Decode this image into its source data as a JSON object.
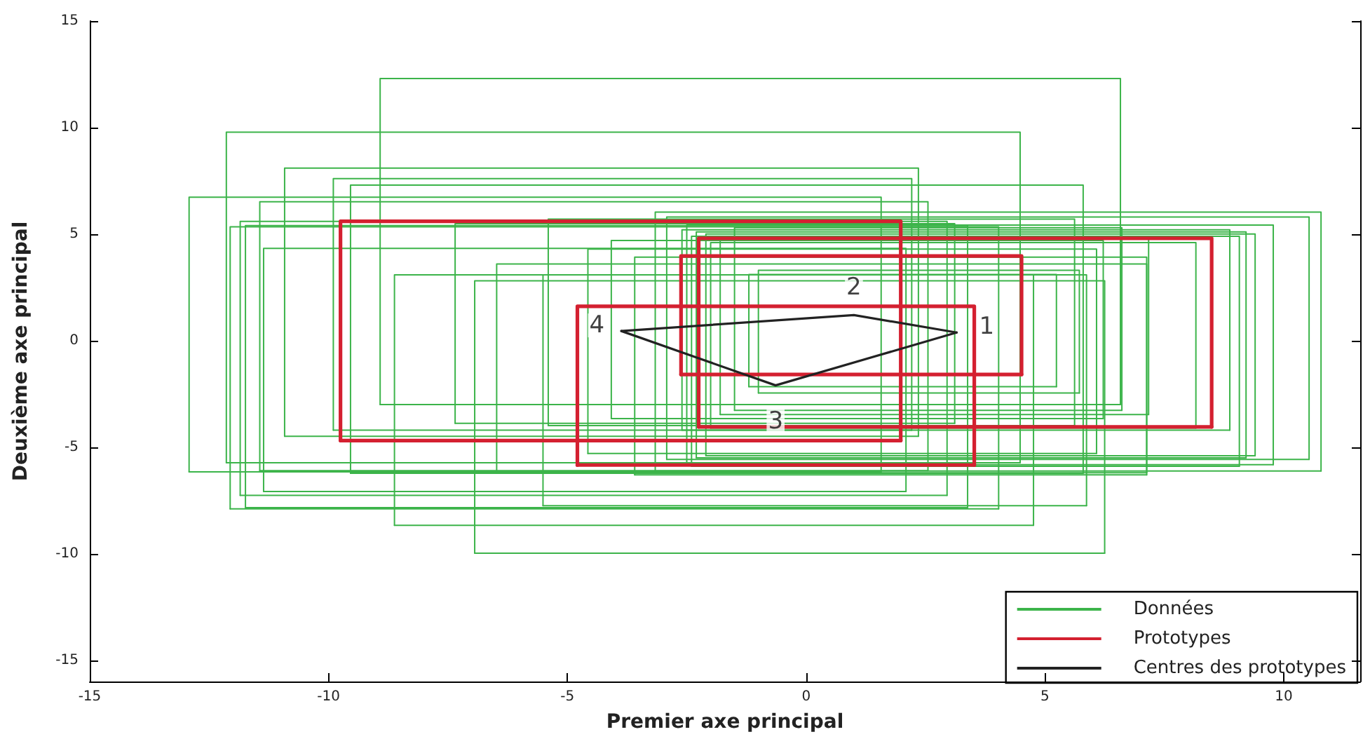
{
  "chart_data": {
    "type": "line",
    "xlabel": "Premier axe principal",
    "ylabel": "Deuxième axe principal",
    "xlim": [
      -15,
      11.6
    ],
    "ylim": [
      -16,
      15
    ],
    "xticks": [
      -15,
      -10,
      -5,
      0,
      5,
      10
    ],
    "yticks": [
      -15,
      -10,
      -5,
      0,
      5,
      10,
      15
    ],
    "marker": "none",
    "legend": "bottom right",
    "series": [
      {
        "name": "Données",
        "color": "#3cb44a",
        "x": [
          -8.92,
          -8.92,
          6.58,
          6.58
        ],
        "values": [
          -3.0,
          12.3,
          12.3,
          -3.0
        ]
      },
      {
        "color": "#3cb44a",
        "x": [
          -8.92,
          6.58
        ],
        "values": [
          -3.0,
          -3.0
        ]
      },
      {
        "color": "#3cb44a",
        "x": [
          -12.14,
          -12.14,
          4.48,
          4.48
        ],
        "values": [
          -5.73,
          9.78,
          9.78,
          -5.73
        ]
      },
      {
        "color": "#3cb44a",
        "x": [
          -12.14,
          4.48
        ],
        "values": [
          -5.73,
          -5.73
        ]
      },
      {
        "color": "#3cb44a",
        "x": [
          -10.92,
          -10.92,
          2.35,
          2.35
        ],
        "values": [
          -4.49,
          8.1,
          8.1,
          -4.49
        ]
      },
      {
        "color": "#3cb44a",
        "x": [
          -10.92,
          2.35
        ],
        "values": [
          -4.49,
          -4.49
        ]
      },
      {
        "color": "#3cb44a",
        "x": [
          -9.9,
          -9.9,
          2.21,
          2.21
        ],
        "values": [
          -4.2,
          7.6,
          7.6,
          -4.2
        ]
      },
      {
        "color": "#3cb44a",
        "x": [
          -9.9,
          2.21
        ],
        "values": [
          -4.2,
          -4.2
        ]
      },
      {
        "color": "#3cb44a",
        "x": [
          -9.54,
          -9.54,
          5.8,
          5.8
        ],
        "values": [
          -6.23,
          7.3,
          7.3,
          -6.23
        ]
      },
      {
        "color": "#3cb44a",
        "x": [
          -9.54,
          5.8
        ],
        "values": [
          -6.23,
          -6.23
        ]
      },
      {
        "color": "#3cb44a",
        "x": [
          -12.92,
          -12.92,
          1.57,
          1.57
        ],
        "values": [
          -6.16,
          6.73,
          6.73,
          -6.16
        ]
      },
      {
        "color": "#3cb44a",
        "x": [
          -12.92,
          1.57
        ],
        "values": [
          -6.16,
          -6.16
        ]
      },
      {
        "color": "#3cb44a",
        "x": [
          -11.44,
          -11.44,
          2.55,
          2.55
        ],
        "values": [
          -6.1,
          6.52,
          6.52,
          -6.1
        ]
      },
      {
        "color": "#3cb44a",
        "x": [
          -11.44,
          2.55
        ],
        "values": [
          -6.1,
          -6.1
        ]
      },
      {
        "color": "#3cb44a",
        "x": [
          -6.94,
          -6.94,
          6.25,
          6.25
        ],
        "values": [
          -9.98,
          2.81,
          2.81,
          -9.98
        ]
      },
      {
        "color": "#3cb44a",
        "x": [
          -6.94,
          6.25
        ],
        "values": [
          -9.98,
          -9.98
        ]
      },
      {
        "color": "#3cb44a",
        "x": [
          -8.62,
          -8.62,
          4.76,
          4.76
        ],
        "values": [
          -8.67,
          3.09,
          3.09,
          -8.67
        ]
      },
      {
        "color": "#3cb44a",
        "x": [
          -8.62,
          4.76
        ],
        "values": [
          -8.67,
          -8.67
        ]
      },
      {
        "color": "#3cb44a",
        "x": [
          -12.06,
          -12.06,
          4.03,
          4.03
        ],
        "values": [
          -7.9,
          5.34,
          5.34,
          -7.9
        ]
      },
      {
        "color": "#3cb44a",
        "x": [
          -12.06,
          4.03
        ],
        "values": [
          -7.9,
          -7.9
        ]
      },
      {
        "color": "#3cb44a",
        "x": [
          -11.36,
          -11.36,
          2.09,
          2.09
        ],
        "values": [
          -7.08,
          4.33,
          4.33,
          -7.08
        ]
      },
      {
        "color": "#3cb44a",
        "x": [
          -11.36,
          2.09
        ],
        "values": [
          -7.08,
          -7.08
        ]
      },
      {
        "color": "#3cb44a",
        "x": [
          -11.85,
          -11.85,
          2.95,
          2.95
        ],
        "values": [
          -7.26,
          5.6,
          5.6,
          -7.26
        ]
      },
      {
        "color": "#3cb44a",
        "x": [
          -11.85,
          2.95
        ],
        "values": [
          -7.26,
          -7.26
        ]
      },
      {
        "color": "#3cb44a",
        "x": [
          -11.74,
          -11.74,
          3.38,
          3.38
        ],
        "values": [
          -7.84,
          5.4,
          5.4,
          -7.84
        ]
      },
      {
        "color": "#3cb44a",
        "x": [
          -11.74,
          3.38
        ],
        "values": [
          -7.84,
          -7.84
        ]
      },
      {
        "color": "#3cb44a",
        "x": [
          -6.48,
          -6.48,
          7.13,
          7.13
        ],
        "values": [
          -6.2,
          3.6,
          3.6,
          -6.2
        ]
      },
      {
        "color": "#3cb44a",
        "x": [
          -6.48,
          7.13
        ],
        "values": [
          -6.2,
          -6.2
        ]
      },
      {
        "color": "#3cb44a",
        "x": [
          -3.16,
          -3.16,
          10.78,
          10.78
        ],
        "values": [
          -6.12,
          6.03,
          6.03,
          -6.12
        ]
      },
      {
        "color": "#3cb44a",
        "x": [
          -3.16,
          10.78
        ],
        "values": [
          -6.12,
          -6.12
        ]
      },
      {
        "color": "#3cb44a",
        "x": [
          -2.92,
          -2.92,
          10.53,
          10.53
        ],
        "values": [
          -5.58,
          5.8,
          5.8,
          -5.58
        ]
      },
      {
        "color": "#3cb44a",
        "x": [
          -2.92,
          10.53
        ],
        "values": [
          -5.58,
          -5.58
        ]
      },
      {
        "color": "#3cb44a",
        "x": [
          -2.5,
          -2.5,
          9.78,
          9.78
        ],
        "values": [
          -5.82,
          5.42,
          5.42,
          -5.82
        ]
      },
      {
        "color": "#3cb44a",
        "x": [
          -2.5,
          9.78
        ],
        "values": [
          -5.82,
          -5.82
        ]
      },
      {
        "color": "#3cb44a",
        "x": [
          -7.35,
          -7.35,
          3.11,
          3.11
        ],
        "values": [
          -3.88,
          5.49,
          5.49,
          -3.88
        ]
      },
      {
        "color": "#3cb44a",
        "x": [
          -7.35,
          3.11
        ],
        "values": [
          -3.88,
          -3.88
        ]
      },
      {
        "color": "#3cb44a",
        "x": [
          -5.4,
          -5.4,
          5.62,
          5.62
        ],
        "values": [
          -3.99,
          5.7,
          5.7,
          -3.99
        ]
      },
      {
        "color": "#3cb44a",
        "x": [
          -5.4,
          5.62
        ],
        "values": [
          -3.99,
          -3.99
        ]
      },
      {
        "color": "#3cb44a",
        "x": [
          -4.57,
          -4.57,
          6.08,
          6.08
        ],
        "values": [
          -5.3,
          4.3,
          4.3,
          -5.3
        ]
      },
      {
        "color": "#3cb44a",
        "x": [
          -4.57,
          6.08
        ],
        "values": [
          -5.3,
          -5.3
        ]
      },
      {
        "color": "#3cb44a",
        "x": [
          -4.08,
          -4.08,
          6.22,
          6.22
        ],
        "values": [
          -3.66,
          4.7,
          4.7,
          -3.66
        ]
      },
      {
        "color": "#3cb44a",
        "x": [
          -4.08,
          6.22
        ],
        "values": [
          -3.66,
          -3.66
        ]
      },
      {
        "color": "#3cb44a",
        "x": [
          -3.59,
          -3.59,
          7.13,
          7.13
        ],
        "values": [
          -6.3,
          3.92,
          3.92,
          -6.3
        ]
      },
      {
        "color": "#3cb44a",
        "x": [
          -3.59,
          7.13
        ],
        "values": [
          -6.3,
          -6.3
        ]
      },
      {
        "color": "#3cb44a",
        "x": [
          -2.6,
          -2.6,
          8.87,
          8.87
        ],
        "values": [
          -4.2,
          5.2,
          5.2,
          -4.2
        ]
      },
      {
        "color": "#3cb44a",
        "x": [
          -2.6,
          8.87
        ],
        "values": [
          -4.2,
          -4.2
        ]
      },
      {
        "color": "#3cb44a",
        "x": [
          -2.3,
          -2.3,
          9.21,
          9.21
        ],
        "values": [
          -5.5,
          5.1,
          5.1,
          -5.5
        ]
      },
      {
        "color": "#3cb44a",
        "x": [
          -2.3,
          9.21
        ],
        "values": [
          -5.5,
          -5.5
        ]
      },
      {
        "color": "#3cb44a",
        "x": [
          -2.1,
          -2.1,
          9.4,
          9.4
        ],
        "values": [
          -5.4,
          5.0,
          5.0,
          -5.4
        ]
      },
      {
        "color": "#3cb44a",
        "x": [
          -2.1,
          9.4
        ],
        "values": [
          -5.4,
          -5.4
        ]
      },
      {
        "color": "#3cb44a",
        "x": [
          -2.0,
          -2.0,
          8.16,
          8.16
        ],
        "values": [
          -4.1,
          4.6,
          4.6,
          -4.1
        ]
      },
      {
        "color": "#3cb44a",
        "x": [
          -2.0,
          8.16
        ],
        "values": [
          -4.1,
          -4.1
        ]
      },
      {
        "color": "#3cb44a",
        "x": [
          -1.2,
          -1.2,
          5.24,
          5.24
        ],
        "values": [
          -2.16,
          3.1,
          3.1,
          -2.16
        ]
      },
      {
        "color": "#3cb44a",
        "x": [
          -1.2,
          5.24
        ],
        "values": [
          -2.16,
          -2.16
        ]
      },
      {
        "color": "#3cb44a",
        "x": [
          -1.0,
          -1.0,
          5.72,
          5.72
        ],
        "values": [
          -2.46,
          3.3,
          3.3,
          -2.46
        ]
      },
      {
        "color": "#3cb44a",
        "x": [
          -1.0,
          5.72
        ],
        "values": [
          -2.46,
          -2.46
        ]
      },
      {
        "color": "#3cb44a",
        "x": [
          -1.8,
          -1.8,
          7.17,
          7.17
        ],
        "values": [
          -3.47,
          4.9,
          4.9,
          -3.47
        ]
      },
      {
        "color": "#3cb44a",
        "x": [
          -1.8,
          7.17
        ],
        "values": [
          -3.47,
          -3.47
        ]
      },
      {
        "color": "#3cb44a",
        "x": [
          -2.4,
          -2.4,
          9.07,
          9.07
        ],
        "values": [
          -5.9,
          4.9,
          4.9,
          -5.9
        ]
      },
      {
        "color": "#3cb44a",
        "x": [
          -2.4,
          9.07
        ],
        "values": [
          -5.9,
          -5.9
        ]
      },
      {
        "color": "#3cb44a",
        "x": [
          -1.5,
          -1.5,
          6.61,
          6.61
        ],
        "values": [
          -3.27,
          5.3,
          5.3,
          -3.27
        ]
      },
      {
        "color": "#3cb44a",
        "x": [
          -1.5,
          6.61
        ],
        "values": [
          -3.27,
          -3.27
        ]
      },
      {
        "color": "#3cb44a",
        "x": [
          -5.51,
          -5.51,
          5.87,
          5.87
        ],
        "values": [
          -7.75,
          3.09,
          3.09,
          -7.75
        ]
      },
      {
        "color": "#3cb44a",
        "x": [
          -5.51,
          5.87
        ],
        "values": [
          -7.75,
          -7.75
        ]
      },
      {
        "name": "Prototypes",
        "color": "#d42030",
        "x": [
          -9.75,
          -9.75,
          1.98,
          1.98
        ],
        "values": [
          -4.69,
          5.6,
          5.6,
          -4.69
        ]
      },
      {
        "color": "#d42030",
        "x": [
          -9.75,
          1.98
        ],
        "values": [
          -4.69,
          -4.69
        ]
      },
      {
        "color": "#d42030",
        "x": [
          -2.25,
          -2.25,
          8.49,
          8.49
        ],
        "values": [
          -4.05,
          4.8,
          4.8,
          -4.05
        ]
      },
      {
        "color": "#d42030",
        "x": [
          -2.25,
          8.49
        ],
        "values": [
          -4.05,
          -4.05
        ]
      },
      {
        "color": "#d42030",
        "x": [
          -2.62,
          -2.62,
          4.51,
          4.51
        ],
        "values": [
          -1.59,
          3.97,
          3.97,
          -1.59
        ]
      },
      {
        "color": "#d42030",
        "x": [
          -2.62,
          4.51
        ],
        "values": [
          -1.59,
          -1.59
        ]
      },
      {
        "color": "#d42030",
        "x": [
          -4.79,
          -4.79,
          3.52,
          3.52
        ],
        "values": [
          -5.84,
          1.61,
          1.61,
          -5.84
        ]
      },
      {
        "color": "#d42030",
        "x": [
          -4.79,
          3.52
        ],
        "values": [
          -5.84,
          -5.84
        ]
      },
      {
        "name": "Centres des prototypes",
        "color": "#222222",
        "x": [
          -3.87,
          1.0,
          3.15
        ],
        "values": [
          0.45,
          1.2,
          0.38
        ]
      },
      {
        "color": "#222222",
        "x": [
          -3.87,
          -0.64,
          3.15
        ],
        "values": [
          0.45,
          -2.1,
          0.38
        ]
      }
    ],
    "annotations": [
      {
        "text": "1",
        "x": 3.15,
        "y": 0.38
      },
      {
        "text": "2",
        "x": 1.0,
        "y": 1.2
      },
      {
        "text": "3",
        "x": -0.64,
        "y": -2.1
      },
      {
        "text": "4",
        "x": -3.87,
        "y": 0.45
      }
    ]
  }
}
